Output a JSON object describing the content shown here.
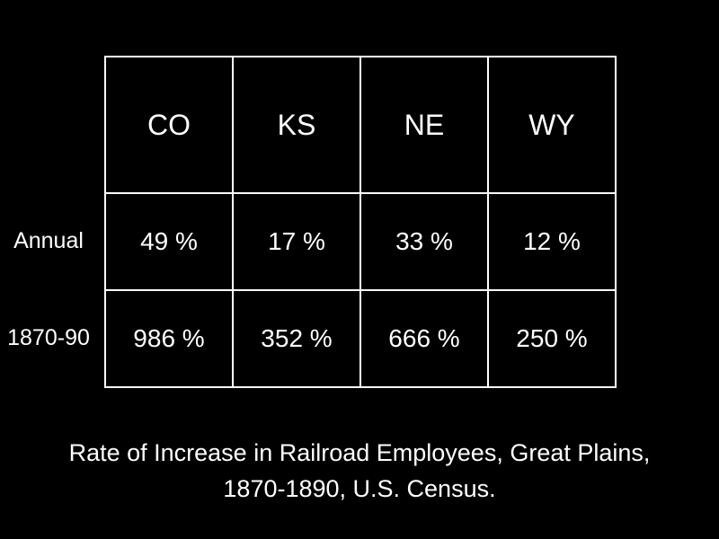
{
  "table": {
    "columns": [
      "CO",
      "KS",
      "NE",
      "WY"
    ],
    "rows": [
      {
        "label": "Annual",
        "cells": [
          "49 %",
          "17 %",
          "33 %",
          "12 %"
        ]
      },
      {
        "label": "1870-90",
        "cells": [
          "986 %",
          "352 %",
          "666 %",
          "250 %"
        ]
      }
    ]
  },
  "caption": "Rate of Increase in Railroad Employees, Great Plains, 1870-1890, U.S. Census."
}
